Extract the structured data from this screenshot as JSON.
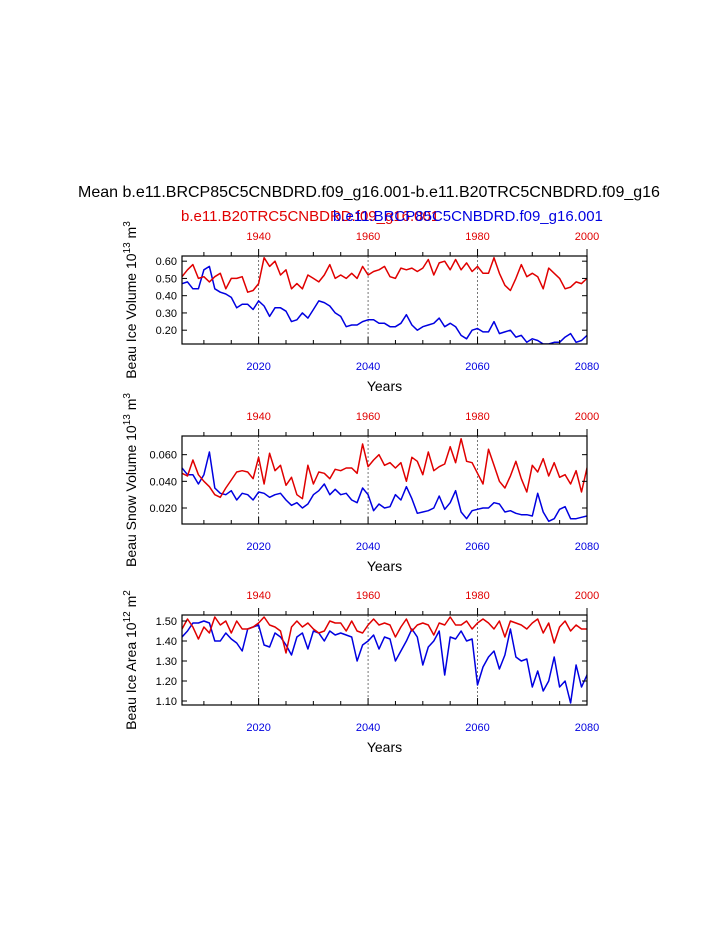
{
  "figure": {
    "title": "Mean b.e11.BRCP85C5CNBDRD.f09_g16.001-b.e11.B20TRC5CNBDRD.f09_g16",
    "legend": {
      "red": "b.e11.B20TRC5CNBDRD.f09_g16.001",
      "blue": "b.e11.BRCP85C5CNBDRD.f09_g16.001"
    },
    "colors": {
      "red": "#e00000",
      "blue": "#0000e0",
      "grid": "#555555"
    }
  },
  "chart_data": [
    {
      "type": "line",
      "ylabel": "Beau Ice Volume 10^13 m^3",
      "ylabel_base": "Beau Ice Volume 10",
      "ylabel_exp": "13",
      "ylabel_unit": " m",
      "ylabel_unit_exp": "3",
      "xlabel": "Years",
      "xlim": [
        2006,
        2080
      ],
      "ylim": [
        0.12,
        0.63
      ],
      "yticks": [
        0.2,
        0.3,
        0.4,
        0.5,
        0.6
      ],
      "ytick_labels": [
        "0.20",
        "0.30",
        "0.40",
        "0.50",
        "0.60"
      ],
      "xticks_bottom": [
        2020,
        2040,
        2060,
        2080
      ],
      "xtick_labels_bottom": [
        "2020",
        "2040",
        "2060",
        "2080"
      ],
      "xticks_top": [
        1940,
        1960,
        1980,
        2000
      ],
      "xtick_labels_top": [
        "1940",
        "1960",
        "1980",
        "2000"
      ],
      "top_axis_offset": 80,
      "grid_x": [
        2020,
        2040,
        2060
      ],
      "series": [
        {
          "name": "b.e11.BRCP85C5CNBDRD.f09_g16.001",
          "color": "blue",
          "x_start": 2006,
          "values": [
            0.47,
            0.48,
            0.44,
            0.44,
            0.55,
            0.57,
            0.44,
            0.42,
            0.41,
            0.39,
            0.33,
            0.35,
            0.35,
            0.32,
            0.37,
            0.34,
            0.28,
            0.33,
            0.33,
            0.31,
            0.25,
            0.26,
            0.3,
            0.27,
            0.32,
            0.37,
            0.36,
            0.34,
            0.3,
            0.28,
            0.22,
            0.23,
            0.23,
            0.25,
            0.26,
            0.26,
            0.24,
            0.24,
            0.22,
            0.22,
            0.24,
            0.29,
            0.23,
            0.2,
            0.22,
            0.23,
            0.24,
            0.27,
            0.22,
            0.24,
            0.22,
            0.17,
            0.15,
            0.2,
            0.21,
            0.19,
            0.19,
            0.25,
            0.18,
            0.19,
            0.2,
            0.16,
            0.17,
            0.13,
            0.15,
            0.14,
            0.12,
            0.12,
            0.13,
            0.13,
            0.16,
            0.18,
            0.13,
            0.14,
            0.17,
            0.15
          ]
        },
        {
          "name": "b.e11.B20TRC5CNBDRD.f09_g16.001",
          "color": "red",
          "x_start": 2006,
          "values": [
            0.51,
            0.55,
            0.58,
            0.5,
            0.51,
            0.48,
            0.51,
            0.53,
            0.44,
            0.5,
            0.5,
            0.51,
            0.42,
            0.43,
            0.47,
            0.62,
            0.57,
            0.6,
            0.52,
            0.55,
            0.44,
            0.47,
            0.44,
            0.52,
            0.5,
            0.48,
            0.52,
            0.58,
            0.5,
            0.52,
            0.5,
            0.53,
            0.5,
            0.57,
            0.52,
            0.54,
            0.55,
            0.57,
            0.51,
            0.5,
            0.56,
            0.55,
            0.56,
            0.54,
            0.56,
            0.61,
            0.52,
            0.59,
            0.6,
            0.55,
            0.61,
            0.55,
            0.59,
            0.54,
            0.57,
            0.53,
            0.53,
            0.62,
            0.53,
            0.46,
            0.43,
            0.5,
            0.58,
            0.51,
            0.53,
            0.51,
            0.44,
            0.56,
            0.53,
            0.5,
            0.44,
            0.45,
            0.48,
            0.47,
            0.5,
            0.48
          ]
        }
      ]
    },
    {
      "type": "line",
      "ylabel": "Beau Snow Volume 10^13 m^3",
      "ylabel_base": "Beau Snow Volume 10",
      "ylabel_exp": "13",
      "ylabel_unit": " m",
      "ylabel_unit_exp": "3",
      "xlabel": "Years",
      "xlim": [
        2006,
        2080
      ],
      "ylim": [
        0.008,
        0.074
      ],
      "yticks": [
        0.02,
        0.04,
        0.06
      ],
      "ytick_labels": [
        "0.020",
        "0.040",
        "0.060"
      ],
      "xticks_bottom": [
        2020,
        2040,
        2060,
        2080
      ],
      "xtick_labels_bottom": [
        "2020",
        "2040",
        "2060",
        "2080"
      ],
      "xticks_top": [
        1940,
        1960,
        1980,
        2000
      ],
      "xtick_labels_top": [
        "1940",
        "1960",
        "1980",
        "2000"
      ],
      "top_axis_offset": 80,
      "grid_x": [
        2020,
        2040,
        2060
      ],
      "series": [
        {
          "name": "b.e11.BRCP85C5CNBDRD.f09_g16.001",
          "color": "blue",
          "x_start": 2006,
          "values": [
            0.05,
            0.045,
            0.045,
            0.038,
            0.045,
            0.062,
            0.035,
            0.031,
            0.03,
            0.033,
            0.026,
            0.031,
            0.03,
            0.026,
            0.032,
            0.031,
            0.028,
            0.03,
            0.031,
            0.026,
            0.022,
            0.024,
            0.02,
            0.023,
            0.03,
            0.033,
            0.038,
            0.03,
            0.034,
            0.03,
            0.031,
            0.026,
            0.024,
            0.035,
            0.03,
            0.018,
            0.023,
            0.02,
            0.021,
            0.03,
            0.026,
            0.036,
            0.027,
            0.016,
            0.017,
            0.018,
            0.02,
            0.029,
            0.019,
            0.024,
            0.033,
            0.017,
            0.012,
            0.018,
            0.019,
            0.02,
            0.02,
            0.024,
            0.023,
            0.017,
            0.018,
            0.016,
            0.015,
            0.015,
            0.014,
            0.031,
            0.017,
            0.01,
            0.012,
            0.019,
            0.021,
            0.012,
            0.012,
            0.013,
            0.014,
            0.013
          ]
        },
        {
          "name": "b.e11.B20TRC5CNBDRD.f09_g16.001",
          "color": "red",
          "x_start": 2006,
          "values": [
            0.046,
            0.044,
            0.056,
            0.045,
            0.04,
            0.036,
            0.03,
            0.028,
            0.035,
            0.041,
            0.047,
            0.048,
            0.047,
            0.042,
            0.058,
            0.038,
            0.061,
            0.048,
            0.052,
            0.037,
            0.043,
            0.03,
            0.027,
            0.052,
            0.038,
            0.047,
            0.046,
            0.042,
            0.049,
            0.048,
            0.05,
            0.05,
            0.046,
            0.068,
            0.051,
            0.056,
            0.06,
            0.052,
            0.054,
            0.05,
            0.054,
            0.04,
            0.058,
            0.055,
            0.045,
            0.062,
            0.048,
            0.051,
            0.053,
            0.066,
            0.054,
            0.072,
            0.055,
            0.054,
            0.046,
            0.038,
            0.064,
            0.052,
            0.04,
            0.035,
            0.044,
            0.055,
            0.042,
            0.032,
            0.052,
            0.047,
            0.057,
            0.044,
            0.054,
            0.043,
            0.045,
            0.038,
            0.048,
            0.032,
            0.05,
            0.046
          ]
        }
      ]
    },
    {
      "type": "line",
      "ylabel": "Beau Ice Area 10^12 m^2",
      "ylabel_base": "Beau Ice Area 10",
      "ylabel_exp": "12",
      "ylabel_unit": " m",
      "ylabel_unit_exp": "2",
      "xlabel": "Years",
      "xlim": [
        2006,
        2080
      ],
      "ylim": [
        1.08,
        1.53
      ],
      "yticks": [
        1.1,
        1.2,
        1.3,
        1.4,
        1.5
      ],
      "ytick_labels": [
        "1.10",
        "1.20",
        "1.30",
        "1.40",
        "1.50"
      ],
      "xticks_bottom": [
        2020,
        2040,
        2060,
        2080
      ],
      "xtick_labels_bottom": [
        "2020",
        "2040",
        "2060",
        "2080"
      ],
      "xticks_top": [
        1940,
        1960,
        1980,
        2000
      ],
      "xtick_labels_top": [
        "1940",
        "1960",
        "1980",
        "2000"
      ],
      "top_axis_offset": 80,
      "grid_x": [
        2020,
        2040,
        2060
      ],
      "series": [
        {
          "name": "b.e11.BRCP85C5CNBDRD.f09_g16.001",
          "color": "blue",
          "x_start": 2006,
          "values": [
            1.42,
            1.45,
            1.49,
            1.49,
            1.5,
            1.49,
            1.4,
            1.4,
            1.44,
            1.41,
            1.39,
            1.35,
            1.46,
            1.47,
            1.48,
            1.38,
            1.37,
            1.44,
            1.42,
            1.38,
            1.33,
            1.42,
            1.44,
            1.36,
            1.45,
            1.44,
            1.4,
            1.45,
            1.43,
            1.44,
            1.43,
            1.42,
            1.3,
            1.38,
            1.4,
            1.43,
            1.36,
            1.42,
            1.41,
            1.3,
            1.35,
            1.4,
            1.46,
            1.42,
            1.28,
            1.37,
            1.4,
            1.45,
            1.23,
            1.42,
            1.41,
            1.45,
            1.4,
            1.41,
            1.18,
            1.27,
            1.32,
            1.35,
            1.26,
            1.33,
            1.46,
            1.32,
            1.3,
            1.31,
            1.17,
            1.25,
            1.15,
            1.2,
            1.32,
            1.17,
            1.2,
            1.09,
            1.28,
            1.17,
            1.23,
            1.35,
            1.32
          ]
        },
        {
          "name": "b.e11.B20TRC5CNBDRD.f09_g16.001",
          "color": "red",
          "x_start": 2006,
          "values": [
            1.46,
            1.51,
            1.47,
            1.41,
            1.47,
            1.44,
            1.52,
            1.48,
            1.5,
            1.44,
            1.5,
            1.46,
            1.46,
            1.47,
            1.49,
            1.52,
            1.48,
            1.47,
            1.45,
            1.34,
            1.47,
            1.5,
            1.47,
            1.49,
            1.46,
            1.44,
            1.45,
            1.5,
            1.49,
            1.49,
            1.45,
            1.5,
            1.45,
            1.44,
            1.48,
            1.51,
            1.48,
            1.49,
            1.48,
            1.42,
            1.47,
            1.51,
            1.45,
            1.48,
            1.49,
            1.48,
            1.43,
            1.49,
            1.48,
            1.52,
            1.48,
            1.48,
            1.5,
            1.46,
            1.49,
            1.51,
            1.49,
            1.46,
            1.5,
            1.42,
            1.5,
            1.49,
            1.48,
            1.46,
            1.49,
            1.51,
            1.44,
            1.49,
            1.39,
            1.47,
            1.5,
            1.45,
            1.48,
            1.46,
            1.46,
            1.49
          ]
        }
      ]
    }
  ]
}
